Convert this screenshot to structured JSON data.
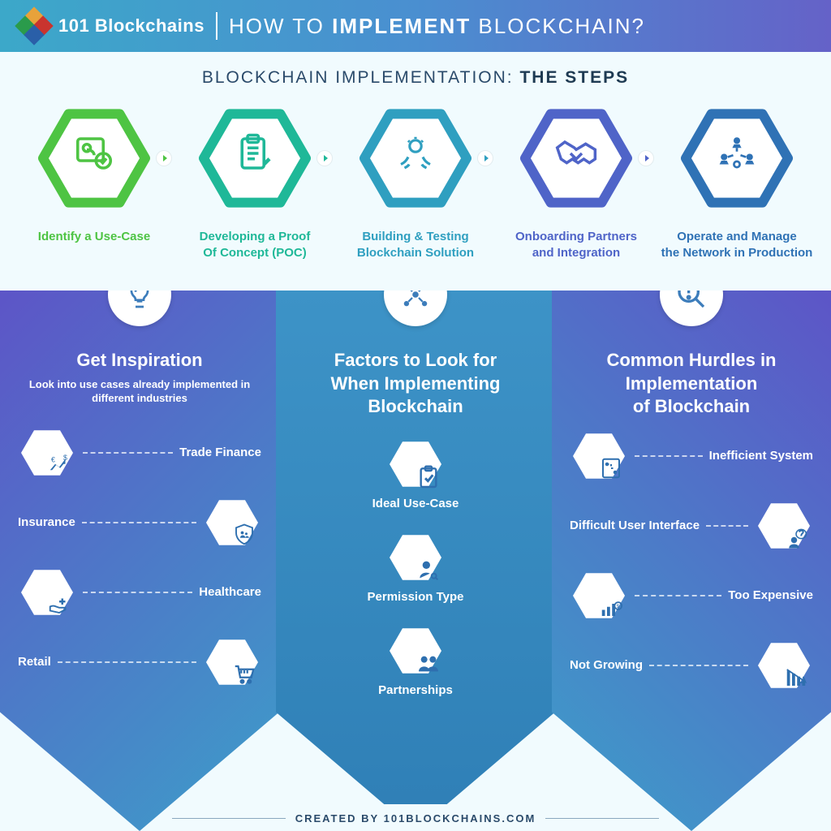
{
  "header": {
    "brand": "101 Blockchains",
    "title_pre": "HOW TO ",
    "title_bold": "IMPLEMENT",
    "title_post": " BLOCKCHAIN?",
    "bg_gradient": [
      "#3ca8c9",
      "#4a8fd0",
      "#6562c8"
    ],
    "logo_colors": [
      "#e8a23a",
      "#2a9b4b",
      "#c9342e",
      "#2a5fa8"
    ]
  },
  "section_title_pre": "BLOCKCHAIN IMPLEMENTATION: ",
  "section_title_bold": "THE STEPS",
  "title_color": "#2a4a6a",
  "steps": [
    {
      "label_l1": "Identify a Use-Case",
      "label_l2": "",
      "color": "#4ec443",
      "icon": "id-check"
    },
    {
      "label_l1": "Developing a Proof",
      "label_l2": "Of Concept (POC)",
      "color": "#1fb898",
      "icon": "clipboard"
    },
    {
      "label_l1": "Building & Testing",
      "label_l2": "Blockchain Solution",
      "color": "#2f9fc0",
      "icon": "hands-bulb"
    },
    {
      "label_l1": "Onboarding Partners",
      "label_l2": "and Integration",
      "color": "#4f64c8",
      "icon": "handshake"
    },
    {
      "label_l1": "Operate and Manage",
      "label_l2": "the Network in Production",
      "color": "#2f72b5",
      "icon": "network-people"
    }
  ],
  "columns": {
    "left": {
      "title": "Get Inspiration",
      "subtitle": "Look into use cases already implemented in different industries",
      "gradient": [
        "#5d55c7",
        "#3d9ec9"
      ],
      "circle_icon": "lightbulb",
      "items": [
        {
          "label": "Trade Finance",
          "icon": "chart-money",
          "side": "left"
        },
        {
          "label": "Insurance",
          "icon": "shield-family",
          "side": "right"
        },
        {
          "label": "Healthcare",
          "icon": "hand-cross",
          "side": "left"
        },
        {
          "label": "Retail",
          "icon": "cart",
          "side": "right"
        }
      ]
    },
    "middle": {
      "title_l1": "Factors to Look for",
      "title_l2": "When Implementing",
      "title_l3": "Blockchain",
      "gradient": [
        "#3d93c7",
        "#2f7fb6"
      ],
      "circle_icon": "people-network",
      "items": [
        {
          "label": "Ideal Use-Case",
          "icon": "clipboard-check"
        },
        {
          "label": "Permission Type",
          "icon": "user-key"
        },
        {
          "label": "Partnerships",
          "icon": "two-people"
        }
      ]
    },
    "right": {
      "title_l1": "Common Hurdles in",
      "title_l2": "Implementation",
      "title_l3": "of Blockchain",
      "gradient": [
        "#5d55c7",
        "#3d9ec9"
      ],
      "circle_icon": "magnify-alert",
      "items": [
        {
          "label": "Inefficient System",
          "icon": "clipboard-route",
          "side": "left"
        },
        {
          "label": "Difficult User Interface",
          "icon": "user-confused",
          "side": "right"
        },
        {
          "label": "Too Expensive",
          "icon": "bars-dollar",
          "side": "left"
        },
        {
          "label": "Not Growing",
          "icon": "chart-down",
          "side": "right"
        }
      ]
    }
  },
  "hex_item_fill": "#ffffff",
  "icon_color": "#2e6faf",
  "footer_pre": "CREATED BY ",
  "footer_bold": "101BLOCKCHAINS.COM",
  "background_color": "#f1fbfe"
}
